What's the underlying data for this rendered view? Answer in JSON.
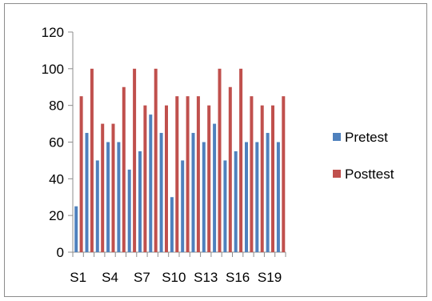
{
  "chart_data": {
    "type": "bar",
    "title": "",
    "xlabel": "",
    "ylabel": "",
    "ylim": [
      0,
      120
    ],
    "yticks": [
      0,
      20,
      40,
      60,
      80,
      100,
      120
    ],
    "grid": false,
    "legend_position": "right",
    "categories": [
      "S1",
      "S2",
      "S3",
      "S4",
      "S5",
      "S6",
      "S7",
      "S8",
      "S9",
      "S10",
      "S11",
      "S12",
      "S13",
      "S14",
      "S15",
      "S16",
      "S17",
      "S18",
      "S19",
      "S20"
    ],
    "x_tick_labels_shown": [
      "S1",
      "S4",
      "S7",
      "S10",
      "S13",
      "S16",
      "S19"
    ],
    "series": [
      {
        "name": "Pretest",
        "color": "#4f81bd",
        "values": [
          25,
          65,
          50,
          60,
          60,
          45,
          55,
          75,
          65,
          30,
          50,
          65,
          60,
          70,
          50,
          55,
          60,
          60,
          65,
          60
        ]
      },
      {
        "name": "Posttest",
        "color": "#c0504d",
        "values": [
          85,
          100,
          70,
          70,
          90,
          100,
          80,
          100,
          80,
          85,
          85,
          85,
          80,
          100,
          90,
          100,
          85,
          80,
          80,
          85
        ]
      }
    ]
  }
}
